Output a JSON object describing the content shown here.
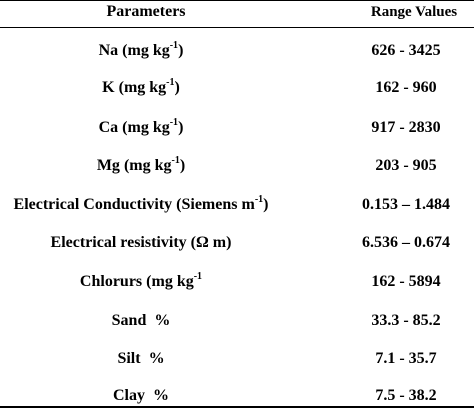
{
  "header": {
    "parameters": "Parameters",
    "range_values": "Range Values"
  },
  "rows": [
    {
      "name": "Na",
      "unit": "(mg kg",
      "exp": "-1",
      "close": ")",
      "value": "626 - 3425"
    },
    {
      "name": "K",
      "unit": " (mg kg",
      "exp": "-1",
      "close": ")",
      "value": "162 - 960"
    },
    {
      "name": "Ca",
      "unit": "(mg kg",
      "exp": "-1",
      "close": ")",
      "value": "917 - 2830"
    },
    {
      "name": "Mg",
      "unit": "(mg kg",
      "exp": "-1",
      "close": ")",
      "value": "203 - 905"
    },
    {
      "name": "Electrical Conductivity",
      "unit": "(Siemens m",
      "exp": "-1",
      "close": ")",
      "value": "0.153 – 1.484"
    },
    {
      "name": "Electrical resistivity",
      "unit": "(Ω m)",
      "exp": "",
      "close": "",
      "value": "6.536 – 0.674"
    },
    {
      "name": "Chlorurs",
      "unit": "(mg kg",
      "exp": "-1",
      "close": "",
      "value": "162 - 5894"
    },
    {
      "name": "Sand",
      "unit": "%",
      "exp": "",
      "close": "",
      "value": "33.3 - 85.2"
    },
    {
      "name": "Silt",
      "unit": "%",
      "exp": "",
      "close": "",
      "value": "7.1 - 35.7"
    },
    {
      "name": "Clay",
      "unit": "%",
      "exp": "",
      "close": "",
      "value": "7.5 - 38.2"
    }
  ]
}
